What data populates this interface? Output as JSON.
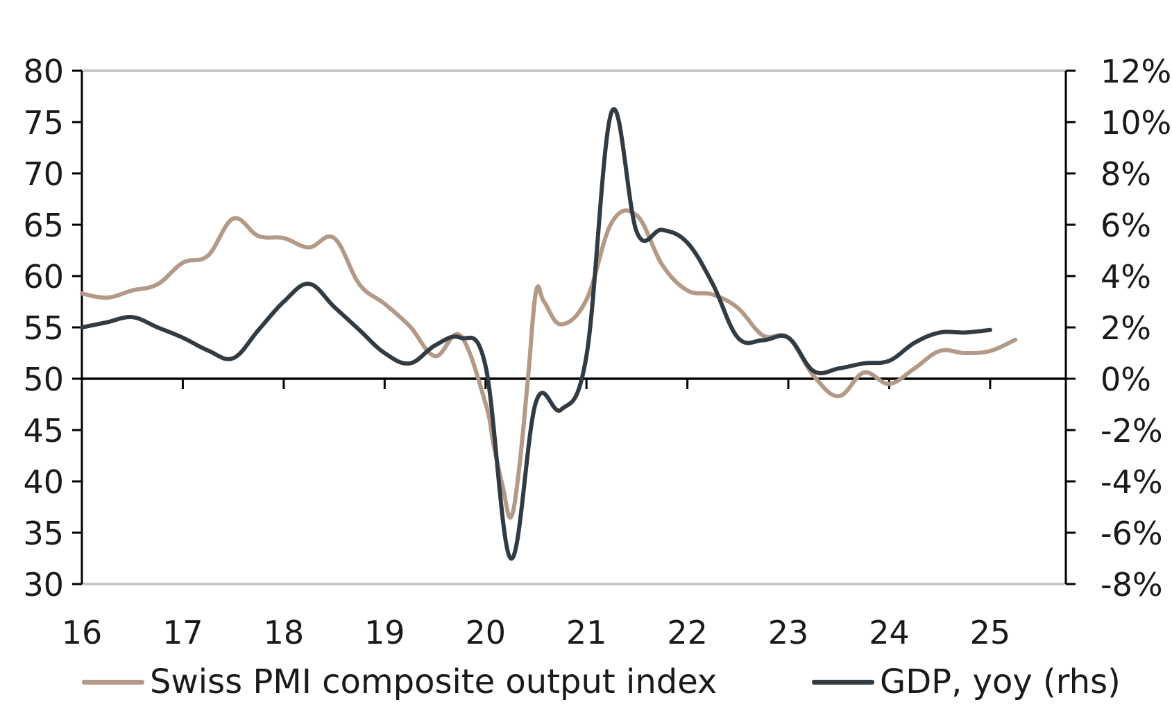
{
  "chart_data": {
    "type": "line",
    "title": "",
    "x_ticks": [
      "16",
      "17",
      "18",
      "19",
      "20",
      "21",
      "22",
      "23",
      "24",
      "25"
    ],
    "xlim": [
      2016,
      2025.75
    ],
    "y_left": {
      "ticks": [
        "30",
        "35",
        "40",
        "45",
        "50",
        "55",
        "60",
        "65",
        "70",
        "75",
        "80"
      ],
      "lim": [
        30,
        80
      ]
    },
    "y_right": {
      "ticks": [
        "-8%",
        "-6%",
        "-4%",
        "-2%",
        "0%",
        "2%",
        "4%",
        "6%",
        "8%",
        "10%",
        "12%"
      ],
      "lim": [
        -8,
        12
      ]
    },
    "grid": "top and bottom border lines only",
    "legend_position": "bottom",
    "series": [
      {
        "name": "Swiss PMI composite output index",
        "axis": "left",
        "color": "#b39987",
        "x": [
          2016.0,
          2016.25,
          2016.5,
          2016.75,
          2017.0,
          2017.25,
          2017.5,
          2017.75,
          2018.0,
          2018.25,
          2018.5,
          2018.75,
          2019.0,
          2019.25,
          2019.5,
          2019.75,
          2020.0,
          2020.08,
          2020.17,
          2020.25,
          2020.33,
          2020.42,
          2020.5,
          2020.58,
          2020.75,
          2021.0,
          2021.25,
          2021.5,
          2021.75,
          2022.0,
          2022.25,
          2022.5,
          2022.75,
          2023.0,
          2023.25,
          2023.5,
          2023.75,
          2024.0,
          2024.25,
          2024.5,
          2024.75,
          2025.0,
          2025.25
        ],
        "values": [
          58.3,
          57.9,
          58.6,
          59.2,
          61.3,
          62.0,
          65.6,
          63.9,
          63.7,
          62.8,
          63.7,
          59.2,
          57.3,
          55.1,
          52.2,
          54.2,
          47.6,
          43.5,
          39.5,
          36.5,
          41.0,
          50.0,
          58.5,
          57.5,
          55.3,
          57.7,
          65.2,
          65.9,
          61.1,
          58.6,
          58.2,
          56.9,
          54.2,
          54.0,
          50.3,
          48.3,
          50.6,
          49.5,
          51.0,
          52.7,
          52.5,
          52.7,
          53.8
        ]
      },
      {
        "name": "GDP, yoy (rhs)",
        "axis": "right",
        "color": "#323b42",
        "x": [
          2016.0,
          2016.25,
          2016.5,
          2016.75,
          2017.0,
          2017.25,
          2017.5,
          2017.75,
          2018.0,
          2018.25,
          2018.5,
          2018.75,
          2019.0,
          2019.25,
          2019.5,
          2019.75,
          2020.0,
          2020.25,
          2020.5,
          2020.75,
          2021.0,
          2021.25,
          2021.5,
          2021.75,
          2022.0,
          2022.25,
          2022.5,
          2022.75,
          2023.0,
          2023.25,
          2023.5,
          2023.75,
          2024.0,
          2024.25,
          2024.5,
          2024.75,
          2025.0
        ],
        "values": [
          2.0,
          2.2,
          2.4,
          2.0,
          1.6,
          1.1,
          0.8,
          1.9,
          3.0,
          3.7,
          2.8,
          1.9,
          1.0,
          0.6,
          1.3,
          1.6,
          0.5,
          -7.0,
          -0.9,
          -1.2,
          0.9,
          10.4,
          5.7,
          5.8,
          5.3,
          3.7,
          1.6,
          1.5,
          1.6,
          0.3,
          0.4,
          0.6,
          0.7,
          1.4,
          1.8,
          1.8,
          1.9
        ]
      }
    ]
  }
}
